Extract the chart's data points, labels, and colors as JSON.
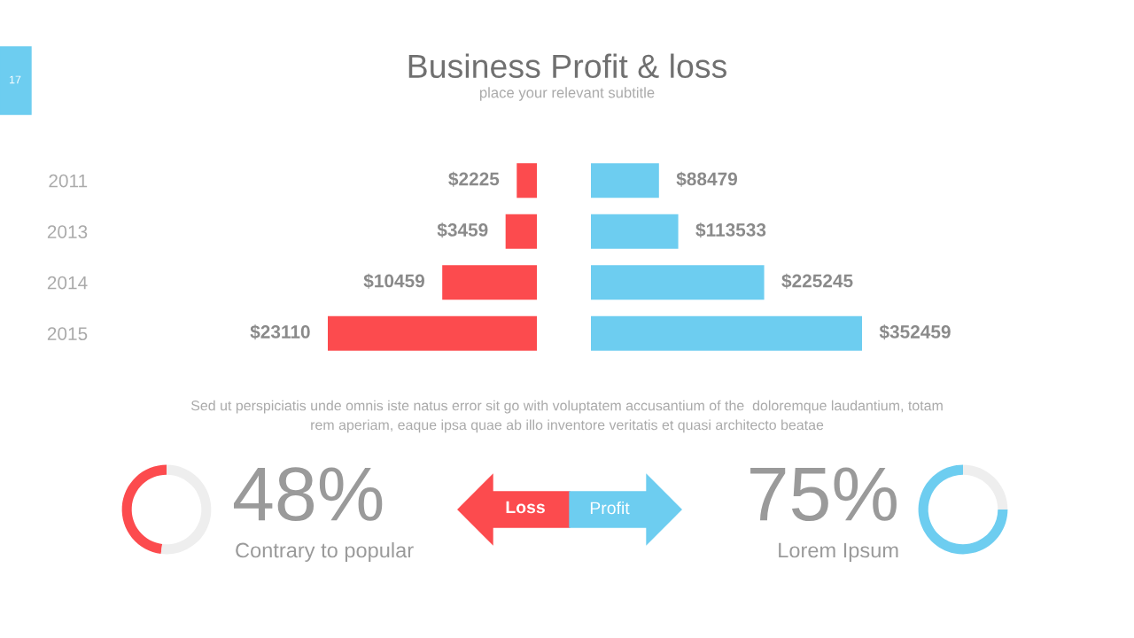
{
  "chart_data": [
    {
      "type": "bar",
      "orientation": "horizontal",
      "title": "Business Profit & loss",
      "subtitle": "place your relevant subtitle",
      "categories": [
        "2011",
        "2013",
        "2014",
        "2015"
      ],
      "values": [
        2225,
        3459,
        10459,
        23110
      ],
      "color": "#fc4b4e",
      "value_labels": [
        "$2225",
        "$3459",
        "$10459",
        "$23110"
      ],
      "tick_labels": "y"
    },
    {
      "type": "bar",
      "orientation": "horizontal",
      "categories": [
        "2011",
        "2013",
        "2014",
        "2015"
      ],
      "values": [
        88479,
        113533,
        225245,
        352459
      ],
      "color": "#6dcdf0",
      "value_labels": [
        "$88479",
        "$113533",
        "$225245",
        "$352459"
      ],
      "tick_labels": false
    },
    {
      "type": "donut",
      "categories": [
        null,
        null
      ],
      "values": [
        48,
        52
      ],
      "colors": [
        "#fc4b4e",
        "#eeeeee"
      ],
      "annotations": [
        "48%",
        "Contrary to popular"
      ]
    },
    {
      "type": "donut",
      "categories": [
        null,
        null
      ],
      "values": [
        75,
        25
      ],
      "colors": [
        "#6dcdf0",
        "#eeeeee"
      ],
      "annotations": [
        "75%",
        "Lorem Ipsum"
      ]
    },
    {
      "type": "other",
      "annotations": [
        "Sed ut perspiciatis unde omnis iste natus error sit go with voluptatem accusantium of the  doloremque laudantium, totam\nrem aperiam, eaque ipsa quae ab illo inventore veritatis et quasi architecto beatae",
        "Loss",
        "Profit",
        "17"
      ]
    }
  ]
}
